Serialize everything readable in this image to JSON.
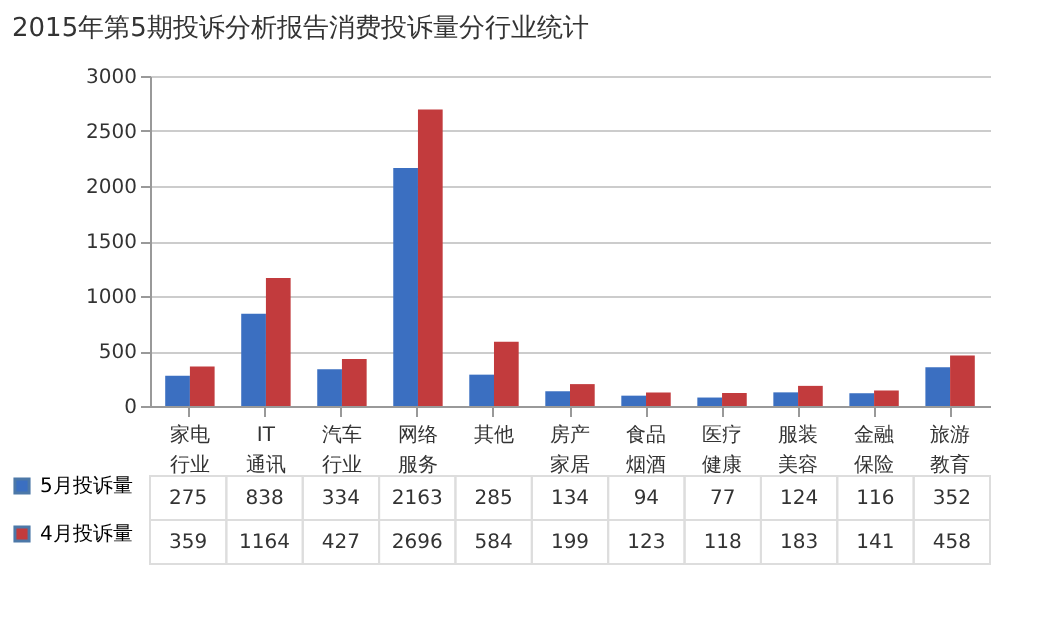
{
  "chart_data": {
    "type": "bar",
    "title": "2015年第5期投诉分析报告消费投诉量分行业统计",
    "categories": [
      "家电行业",
      "IT通讯",
      "汽车行业",
      "网络服务",
      "其他",
      "房产家居",
      "食品烟酒",
      "医疗健康",
      "服装美容",
      "金融保险",
      "旅游教育"
    ],
    "series": [
      {
        "name": "5月投诉量",
        "color": "#3b6fc1",
        "values": [
          275,
          838,
          334,
          2163,
          285,
          134,
          94,
          77,
          124,
          116,
          352
        ]
      },
      {
        "name": "4月投诉量",
        "color": "#c23b3d",
        "values": [
          359,
          1164,
          427,
          2696,
          584,
          199,
          123,
          118,
          183,
          141,
          458
        ]
      }
    ],
    "ylim": [
      0,
      3000
    ],
    "yticks": [
      0,
      500,
      1000,
      1500,
      2000,
      2500,
      3000
    ],
    "grid": "y",
    "legend": "bottom left",
    "data_labels": true
  }
}
